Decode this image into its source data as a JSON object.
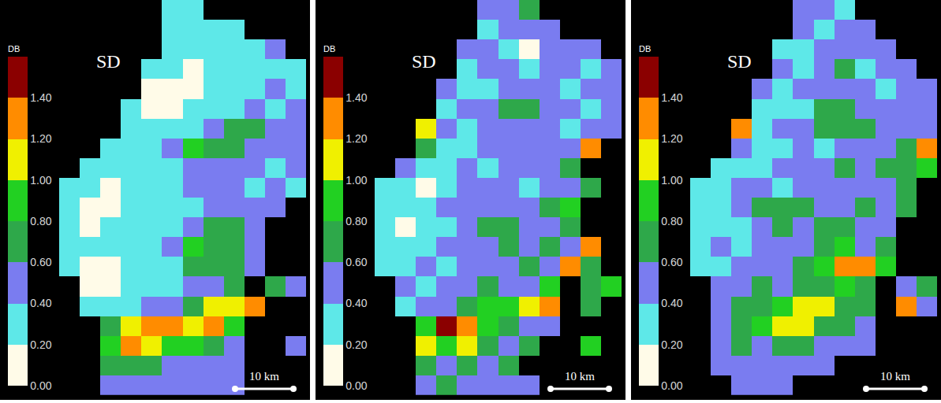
{
  "chart_data": [
    {
      "type": "heatmap",
      "title": "SD",
      "scale_bar": "10 km",
      "tick_labels": false,
      "colorbar": {
        "title": "DB",
        "range": [
          0,
          1.6
        ],
        "ticks": [
          {
            "value": 0,
            "label": "0.00"
          },
          {
            "value": 0.2,
            "label": "0.20"
          },
          {
            "value": 0.4,
            "label": "0.40"
          },
          {
            "value": 0.6,
            "label": "0.60"
          },
          {
            "value": 0.8,
            "label": "0.80"
          },
          {
            "value": 1.0,
            "label": "1.00"
          },
          {
            "value": 1.2,
            "label": "1.20"
          },
          {
            "value": 1.4,
            "label": "1.40"
          }
        ],
        "colors": [
          "#fffbe8",
          "#5ee8e8",
          "#7a7cf0",
          "#2ea84a",
          "#22d022",
          "#f0f000",
          "#ff8c00",
          "#8b0000"
        ]
      },
      "cells": [
        [
          null,
          null,
          null,
          null,
          null,
          0.3,
          0.3,
          null,
          null,
          null,
          null,
          null
        ],
        [
          null,
          null,
          null,
          null,
          null,
          0.3,
          0.3,
          0.3,
          0.3,
          null,
          null,
          null
        ],
        [
          null,
          null,
          null,
          null,
          null,
          0.3,
          0.3,
          0.3,
          0.3,
          0.3,
          0.5,
          null
        ],
        [
          null,
          null,
          null,
          null,
          0.3,
          0.3,
          0.1,
          0.3,
          0.3,
          0.3,
          0.3,
          0.3
        ],
        [
          null,
          null,
          null,
          null,
          0.1,
          0.1,
          0.1,
          0.3,
          0.3,
          0.3,
          0.5,
          0.3
        ],
        [
          null,
          null,
          null,
          0.3,
          0.1,
          0.1,
          0.3,
          0.3,
          0.3,
          0.5,
          0.3,
          0.5
        ],
        [
          null,
          null,
          null,
          0.3,
          0.3,
          0.3,
          0.3,
          0.5,
          0.7,
          0.7,
          0.5,
          0.5
        ],
        [
          null,
          null,
          0.3,
          0.3,
          0.3,
          0.5,
          0.9,
          0.7,
          0.7,
          0.5,
          0.5,
          0.5
        ],
        [
          null,
          0.3,
          0.3,
          0.3,
          0.3,
          0.3,
          0.5,
          0.5,
          0.5,
          0.5,
          0.3,
          0.5
        ],
        [
          0.3,
          0.3,
          0.1,
          0.3,
          0.3,
          0.3,
          0.5,
          0.5,
          0.5,
          0.3,
          0.5,
          0.3
        ],
        [
          0.3,
          0.1,
          0.1,
          0.3,
          0.3,
          0.3,
          0.3,
          0.5,
          0.5,
          0.5,
          0.5,
          null
        ],
        [
          0.3,
          0.1,
          0.3,
          0.3,
          0.3,
          0.3,
          0.5,
          0.7,
          0.7,
          0.5,
          null,
          null
        ],
        [
          0.3,
          0.3,
          0.3,
          0.3,
          0.3,
          0.5,
          0.9,
          0.7,
          0.7,
          0.5,
          null,
          null
        ],
        [
          0.3,
          0.1,
          0.1,
          0.3,
          0.3,
          0.3,
          0.7,
          0.7,
          0.7,
          0.5,
          null,
          null
        ],
        [
          null,
          0.1,
          0.1,
          0.3,
          0.3,
          0.3,
          0.5,
          0.5,
          0.7,
          null,
          0.7,
          0.5
        ],
        [
          null,
          0.3,
          0.3,
          0.3,
          0.5,
          0.5,
          0.7,
          1.1,
          1.1,
          1.3,
          null,
          null
        ],
        [
          null,
          null,
          0.7,
          1.1,
          1.3,
          1.3,
          1.1,
          1.3,
          0.9,
          null,
          null,
          null
        ],
        [
          null,
          null,
          0.9,
          1.3,
          1.1,
          0.9,
          0.9,
          0.7,
          0.5,
          null,
          null,
          0.5
        ],
        [
          null,
          null,
          0.7,
          0.7,
          0.7,
          0.5,
          0.5,
          0.5,
          0.5,
          null,
          null,
          null
        ],
        [
          null,
          null,
          0.5,
          0.5,
          0.5,
          0.5,
          0.5,
          0.5,
          0.5,
          null,
          null,
          null
        ]
      ]
    },
    {
      "type": "heatmap",
      "title": "SD",
      "scale_bar": "10 km",
      "tick_labels": false,
      "colorbar": {
        "title": "DB",
        "range": [
          0,
          1.6
        ],
        "ticks": [
          {
            "value": 0,
            "label": "0.00"
          },
          {
            "value": 0.2,
            "label": "0.20"
          },
          {
            "value": 0.4,
            "label": "0.40"
          },
          {
            "value": 0.6,
            "label": "0.60"
          },
          {
            "value": 0.8,
            "label": "0.80"
          },
          {
            "value": 1.0,
            "label": "1.00"
          },
          {
            "value": 1.2,
            "label": "1.20"
          },
          {
            "value": 1.4,
            "label": "1.40"
          }
        ],
        "colors": [
          "#fffbe8",
          "#5ee8e8",
          "#7a7cf0",
          "#2ea84a",
          "#22d022",
          "#f0f000",
          "#ff8c00",
          "#8b0000"
        ]
      },
      "cells": [
        [
          null,
          null,
          null,
          null,
          null,
          0.5,
          0.5,
          0.7,
          null,
          null,
          null,
          null
        ],
        [
          null,
          null,
          null,
          null,
          null,
          0.3,
          0.5,
          0.5,
          0.5,
          null,
          null,
          null
        ],
        [
          null,
          null,
          null,
          null,
          0.5,
          0.5,
          0.3,
          0.1,
          0.5,
          0.5,
          0.5,
          null
        ],
        [
          null,
          null,
          null,
          null,
          0.3,
          0.5,
          0.5,
          0.3,
          0.5,
          0.5,
          0.3,
          0.5
        ],
        [
          null,
          null,
          null,
          0.5,
          0.3,
          0.3,
          0.5,
          0.5,
          0.5,
          0.3,
          0.5,
          0.5
        ],
        [
          null,
          null,
          null,
          0.3,
          0.5,
          0.5,
          0.7,
          0.7,
          0.5,
          0.5,
          0.3,
          0.5
        ],
        [
          null,
          null,
          1.1,
          0.5,
          0.3,
          0.5,
          0.5,
          0.5,
          0.5,
          0.3,
          0.5,
          0.5
        ],
        [
          null,
          null,
          0.7,
          0.3,
          0.3,
          0.5,
          0.5,
          0.5,
          0.5,
          0.5,
          1.3,
          null
        ],
        [
          null,
          0.5,
          0.3,
          0.3,
          0.5,
          0.3,
          0.5,
          0.5,
          0.5,
          0.7,
          null,
          null
        ],
        [
          0.3,
          0.3,
          0.1,
          0.3,
          0.5,
          0.5,
          0.5,
          0.3,
          0.5,
          0.5,
          0.7,
          null
        ],
        [
          0.3,
          0.3,
          0.3,
          0.5,
          0.5,
          0.5,
          0.5,
          0.5,
          0.7,
          0.9,
          null,
          null
        ],
        [
          0.3,
          0.1,
          0.3,
          0.3,
          0.5,
          0.7,
          0.7,
          0.5,
          0.5,
          0.7,
          null,
          null
        ],
        [
          0.3,
          0.3,
          0.3,
          0.5,
          0.5,
          0.5,
          0.7,
          0.5,
          0.7,
          0.5,
          1.3,
          null
        ],
        [
          0.3,
          0.3,
          0.5,
          0.3,
          0.5,
          0.5,
          0.5,
          0.7,
          0.5,
          1.3,
          0.7,
          null
        ],
        [
          null,
          0.5,
          0.3,
          0.5,
          0.5,
          0.7,
          0.5,
          0.5,
          0.9,
          null,
          0.7,
          0.9
        ],
        [
          null,
          0.3,
          0.5,
          0.5,
          0.7,
          0.9,
          0.9,
          1.1,
          1.3,
          null,
          0.7,
          null
        ],
        [
          null,
          null,
          0.9,
          1.5,
          1.3,
          0.9,
          0.7,
          0.5,
          0.5,
          null,
          null,
          null
        ],
        [
          null,
          null,
          1.1,
          0.9,
          1.1,
          0.7,
          0.5,
          0.7,
          null,
          null,
          0.9,
          null
        ],
        [
          null,
          null,
          0.7,
          0.5,
          0.7,
          0.5,
          0.7,
          null,
          null,
          null,
          null,
          null
        ],
        [
          null,
          null,
          0.5,
          0.7,
          0.5,
          0.5,
          0.5,
          0.5,
          null,
          null,
          null,
          null
        ]
      ]
    },
    {
      "type": "heatmap",
      "title": "SD",
      "scale_bar": "10 km",
      "tick_labels": false,
      "colorbar": {
        "title": "DB",
        "range": [
          0,
          1.6
        ],
        "ticks": [
          {
            "value": 0,
            "label": "0.00"
          },
          {
            "value": 0.2,
            "label": "0.20"
          },
          {
            "value": 0.4,
            "label": "0.40"
          },
          {
            "value": 0.6,
            "label": "0.60"
          },
          {
            "value": 0.8,
            "label": "0.80"
          },
          {
            "value": 1.0,
            "label": "1.00"
          },
          {
            "value": 1.2,
            "label": "1.20"
          },
          {
            "value": 1.4,
            "label": "1.40"
          }
        ],
        "colors": [
          "#fffbe8",
          "#5ee8e8",
          "#7a7cf0",
          "#2ea84a",
          "#22d022",
          "#f0f000",
          "#ff8c00",
          "#8b0000"
        ]
      },
      "cells": [
        [
          null,
          null,
          null,
          null,
          null,
          0.5,
          0.5,
          0.3,
          null,
          null,
          null,
          null
        ],
        [
          null,
          null,
          null,
          null,
          null,
          0.5,
          0.3,
          0.5,
          0.5,
          null,
          null,
          null
        ],
        [
          null,
          null,
          null,
          null,
          0.3,
          0.3,
          0.5,
          0.5,
          0.5,
          0.5,
          null,
          null
        ],
        [
          null,
          null,
          null,
          null,
          0.5,
          0.3,
          0.5,
          0.7,
          0.3,
          0.5,
          0.5,
          null
        ],
        [
          null,
          null,
          null,
          0.5,
          0.3,
          0.5,
          0.5,
          0.5,
          0.5,
          0.3,
          0.5,
          0.5
        ],
        [
          null,
          null,
          null,
          0.3,
          0.3,
          0.3,
          0.7,
          0.7,
          0.5,
          0.5,
          0.5,
          0.5
        ],
        [
          null,
          null,
          1.3,
          0.3,
          0.5,
          0.5,
          0.7,
          0.7,
          0.7,
          0.5,
          0.5,
          0.5
        ],
        [
          null,
          null,
          0.5,
          0.3,
          0.3,
          0.5,
          0.3,
          0.5,
          0.5,
          0.5,
          0.7,
          1.3
        ],
        [
          null,
          0.3,
          0.3,
          0.3,
          0.5,
          0.5,
          0.5,
          0.7,
          0.5,
          0.7,
          0.7,
          0.9
        ],
        [
          0.3,
          0.3,
          0.5,
          0.5,
          0.3,
          0.5,
          0.5,
          0.5,
          0.5,
          0.5,
          0.7,
          null
        ],
        [
          0.3,
          0.3,
          0.5,
          0.7,
          0.7,
          0.7,
          0.5,
          0.5,
          0.7,
          0.5,
          0.7,
          null
        ],
        [
          0.3,
          0.3,
          0.3,
          0.5,
          0.7,
          0.5,
          0.7,
          0.7,
          0.5,
          0.5,
          null,
          null
        ],
        [
          0.3,
          0.5,
          0.3,
          0.5,
          0.5,
          0.5,
          0.7,
          0.9,
          0.5,
          0.7,
          null,
          null
        ],
        [
          0.3,
          0.3,
          0.5,
          0.5,
          0.5,
          0.7,
          0.9,
          1.3,
          1.3,
          0.9,
          null,
          null
        ],
        [
          null,
          0.5,
          0.5,
          0.7,
          0.5,
          0.7,
          0.7,
          0.9,
          0.7,
          null,
          0.5,
          0.7
        ],
        [
          null,
          0.5,
          0.7,
          0.7,
          0.9,
          1.1,
          1.1,
          0.7,
          0.7,
          null,
          1.3,
          0.5
        ],
        [
          null,
          0.5,
          0.7,
          0.9,
          1.1,
          1.1,
          0.7,
          0.7,
          0.5,
          null,
          null,
          null
        ],
        [
          null,
          0.5,
          0.7,
          0.5,
          0.7,
          0.7,
          0.5,
          0.5,
          0.5,
          null,
          null,
          null
        ],
        [
          null,
          0.5,
          0.5,
          0.5,
          0.5,
          0.5,
          0.5,
          null,
          null,
          null,
          null,
          null
        ],
        [
          null,
          null,
          0.5,
          0.5,
          0.5,
          null,
          null,
          null,
          null,
          null,
          null,
          null
        ]
      ]
    }
  ]
}
